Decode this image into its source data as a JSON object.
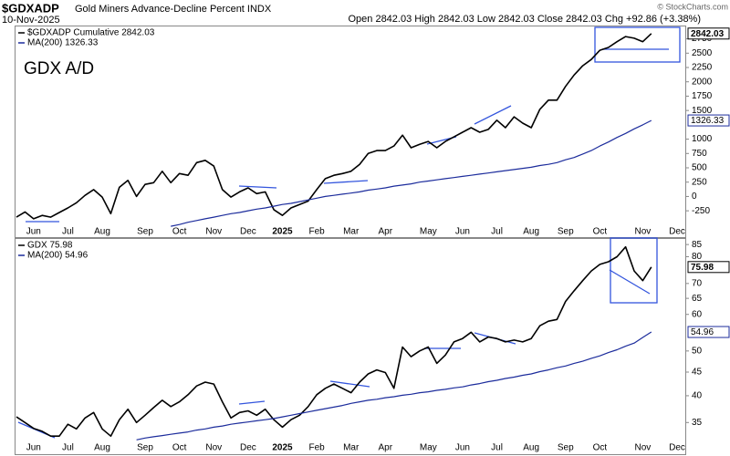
{
  "chart_data": [
    {
      "type": "line",
      "title": "$GDXADP",
      "subtitle": "Gold Miners Advance-Decline Percent INDX",
      "date": "10-Nov-2025",
      "quote": "Open 2842.03  High 2842.03  Low 2842.03  Close 2842.03  Chg +92.86 (+3.38%)",
      "credit": "© StockCharts.com",
      "annotation": "GDX A/D",
      "categories": [
        null,
        null,
        "Jun",
        null,
        null,
        null,
        "Jul",
        null,
        null,
        null,
        "Aug",
        null,
        null,
        null,
        null,
        "Sep",
        null,
        null,
        null,
        "Oct",
        null,
        null,
        null,
        "Nov",
        null,
        null,
        null,
        "Dec",
        null,
        null,
        null,
        "2025",
        null,
        null,
        null,
        "Feb",
        null,
        null,
        null,
        "Mar",
        null,
        null,
        null,
        "Apr",
        null,
        null,
        null,
        null,
        "May",
        null,
        null,
        null,
        "Jun",
        null,
        null,
        null,
        "Jul",
        null,
        null,
        null,
        "Aug",
        null,
        null,
        null,
        "Sep",
        null,
        null,
        null,
        "Oct",
        null,
        null,
        null,
        null,
        "Nov",
        null,
        null,
        null,
        "Dec"
      ],
      "series": [
        {
          "name": "$GDXADP Cumulative 2842.03",
          "color": "#000000",
          "values": [
            -360,
            -270,
            -390,
            -330,
            -360,
            -280,
            -200,
            -110,
            20,
            120,
            -10,
            -300,
            160,
            280,
            0,
            210,
            240,
            440,
            240,
            400,
            370,
            590,
            630,
            530,
            120,
            -10,
            80,
            150,
            50,
            80,
            -230,
            -330,
            -200,
            -140,
            -80,
            120,
            310,
            370,
            400,
            440,
            560,
            750,
            800,
            800,
            880,
            1070,
            850,
            910,
            960,
            850,
            960,
            1040,
            1120,
            1200,
            1120,
            1170,
            1330,
            1200,
            1390,
            1280,
            1200,
            1520,
            1680,
            1680,
            1920,
            2120,
            2280,
            2390,
            2550,
            2600,
            2700,
            2790,
            2760,
            2700,
            2842.03,
            null,
            null,
            null
          ]
        },
        {
          "name": "MA(200) 1326.33",
          "color": "#1c2c9c",
          "values": [
            null,
            null,
            null,
            null,
            null,
            null,
            null,
            null,
            null,
            null,
            null,
            null,
            null,
            null,
            null,
            null,
            null,
            null,
            -520,
            -490,
            -450,
            -420,
            -390,
            -360,
            -330,
            -300,
            -280,
            -250,
            -220,
            -200,
            -170,
            -140,
            -120,
            -90,
            -60,
            -30,
            0,
            20,
            40,
            60,
            80,
            110,
            130,
            150,
            180,
            200,
            220,
            250,
            270,
            290,
            310,
            330,
            350,
            370,
            390,
            410,
            430,
            450,
            470,
            490,
            510,
            540,
            560,
            590,
            640,
            680,
            740,
            800,
            880,
            950,
            1030,
            1100,
            1180,
            1250,
            1326.33,
            null,
            null,
            null
          ]
        }
      ],
      "ylim": [
        -550,
        2950
      ],
      "yticks": [
        -250,
        0,
        250,
        500,
        750,
        1000,
        1500,
        1750,
        2000,
        2250,
        2500,
        2750
      ],
      "grid": false,
      "log_scale": false
    },
    {
      "type": "line",
      "categories": [
        null,
        null,
        "Jun",
        null,
        null,
        null,
        "Jul",
        null,
        null,
        null,
        "Aug",
        null,
        null,
        null,
        null,
        "Sep",
        null,
        null,
        null,
        "Oct",
        null,
        null,
        null,
        "Nov",
        null,
        null,
        null,
        "Dec",
        null,
        null,
        null,
        "2025",
        null,
        null,
        null,
        "Feb",
        null,
        null,
        null,
        "Mar",
        null,
        null,
        null,
        "Apr",
        null,
        null,
        null,
        null,
        "May",
        null,
        null,
        null,
        "Jun",
        null,
        null,
        null,
        "Jul",
        null,
        null,
        null,
        "Aug",
        null,
        null,
        null,
        "Sep",
        null,
        null,
        null,
        "Oct",
        null,
        null,
        null,
        null,
        "Nov",
        null,
        null,
        null,
        "Dec"
      ],
      "series": [
        {
          "name": "GDX 75.98",
          "color": "#000000",
          "values": [
            36,
            35,
            34,
            33.5,
            32.7,
            32.7,
            34.7,
            33.9,
            35.8,
            36.8,
            33.9,
            32.7,
            35.5,
            37.4,
            35,
            36.3,
            37.7,
            39.1,
            37.9,
            38.8,
            40.2,
            42,
            42.8,
            42.4,
            38.8,
            35.8,
            36.8,
            37.1,
            36.3,
            37.4,
            35.5,
            34.2,
            35.5,
            36.3,
            37.9,
            40.2,
            41.5,
            42.4,
            41.5,
            40.6,
            42.8,
            44.6,
            45.5,
            44.9,
            41.5,
            51,
            48.6,
            50,
            51,
            47,
            49,
            52.3,
            53.2,
            54.9,
            52.3,
            53.6,
            53.2,
            52.3,
            52.8,
            52.3,
            53.2,
            56.7,
            58,
            58.5,
            64,
            67.5,
            71,
            74.5,
            77,
            78,
            80,
            84,
            74.5,
            71,
            75.98,
            null,
            null,
            null
          ]
        },
        {
          "name": "MA(200) 54.96",
          "color": "#1c2c9c",
          "values": [
            null,
            null,
            null,
            null,
            null,
            null,
            null,
            null,
            null,
            null,
            null,
            null,
            null,
            null,
            32.1,
            32.4,
            32.6,
            32.8,
            33,
            33.2,
            33.4,
            33.7,
            33.9,
            34.2,
            34.4,
            34.7,
            34.9,
            35.1,
            35.3,
            35.5,
            35.7,
            36,
            36.3,
            36.6,
            36.9,
            37.2,
            37.5,
            37.8,
            38.1,
            38.5,
            38.8,
            39.1,
            39.3,
            39.6,
            39.8,
            40.1,
            40.3,
            40.6,
            40.8,
            41.1,
            41.3,
            41.6,
            41.8,
            42.2,
            42.5,
            42.9,
            43.2,
            43.6,
            43.9,
            44.3,
            44.6,
            45.1,
            45.5,
            46,
            46.4,
            47,
            47.5,
            48.2,
            48.8,
            49.6,
            50.3,
            51.2,
            52,
            53.5,
            54.96,
            null,
            null,
            null
          ]
        }
      ],
      "ylim": [
        32,
        87.4
      ],
      "yticks": [
        35,
        40,
        45,
        50,
        60,
        65,
        70,
        80,
        85
      ],
      "grid": false,
      "log_scale": true
    }
  ]
}
